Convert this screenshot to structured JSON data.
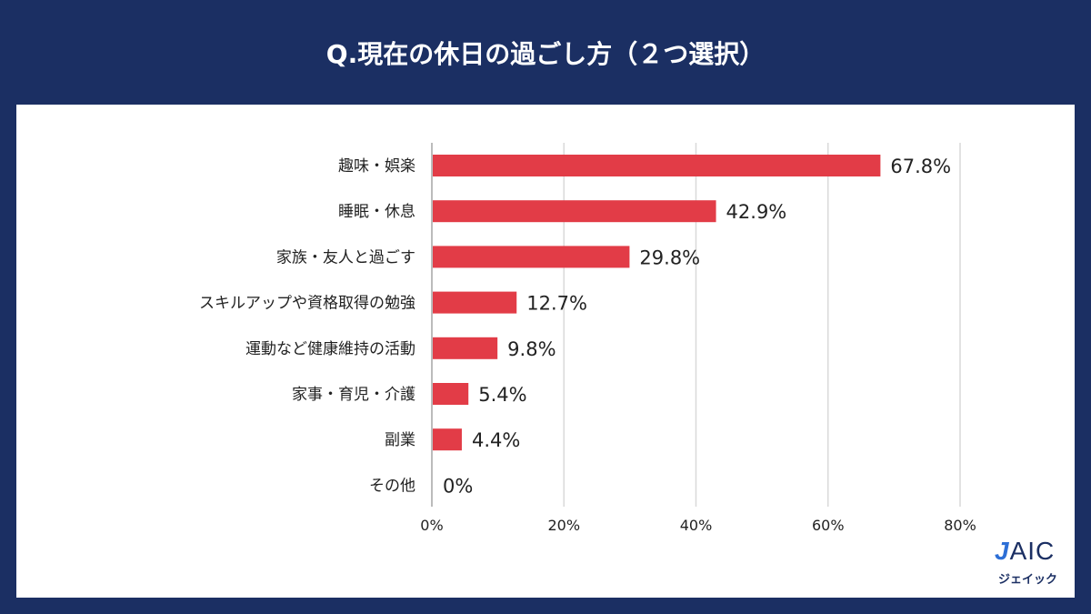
{
  "title": "Q.現在の休日の過ごし方（２つ選択）",
  "logo": {
    "text": "JAIC",
    "subtext": "ジェイック"
  },
  "colors": {
    "background": "#1b2f63",
    "bar": "#e23c47",
    "grid": "#d9d9d9"
  },
  "chart_data": {
    "type": "bar",
    "orientation": "horizontal",
    "title": "Q.現在の休日の過ごし方（２つ選択）",
    "categories": [
      "趣味・娯楽",
      "睡眠・休息",
      "家族・友人と過ごす",
      "スキルアップや資格取得の勉強",
      "運動など健康維持の活動",
      "家事・育児・介護",
      "副業",
      "その他"
    ],
    "values": [
      67.8,
      42.9,
      29.8,
      12.7,
      9.8,
      5.4,
      4.4,
      0
    ],
    "data_labels": [
      "67.8%",
      "42.9%",
      "29.8%",
      "12.7%",
      "9.8%",
      "5.4%",
      "4.4%",
      "0%"
    ],
    "xlim": [
      0,
      80
    ],
    "xticks": [
      0,
      20,
      40,
      60,
      80
    ],
    "xtick_labels": [
      "0%",
      "20%",
      "40%",
      "60%",
      "80%"
    ],
    "grid": "vertical",
    "legend": "none"
  }
}
